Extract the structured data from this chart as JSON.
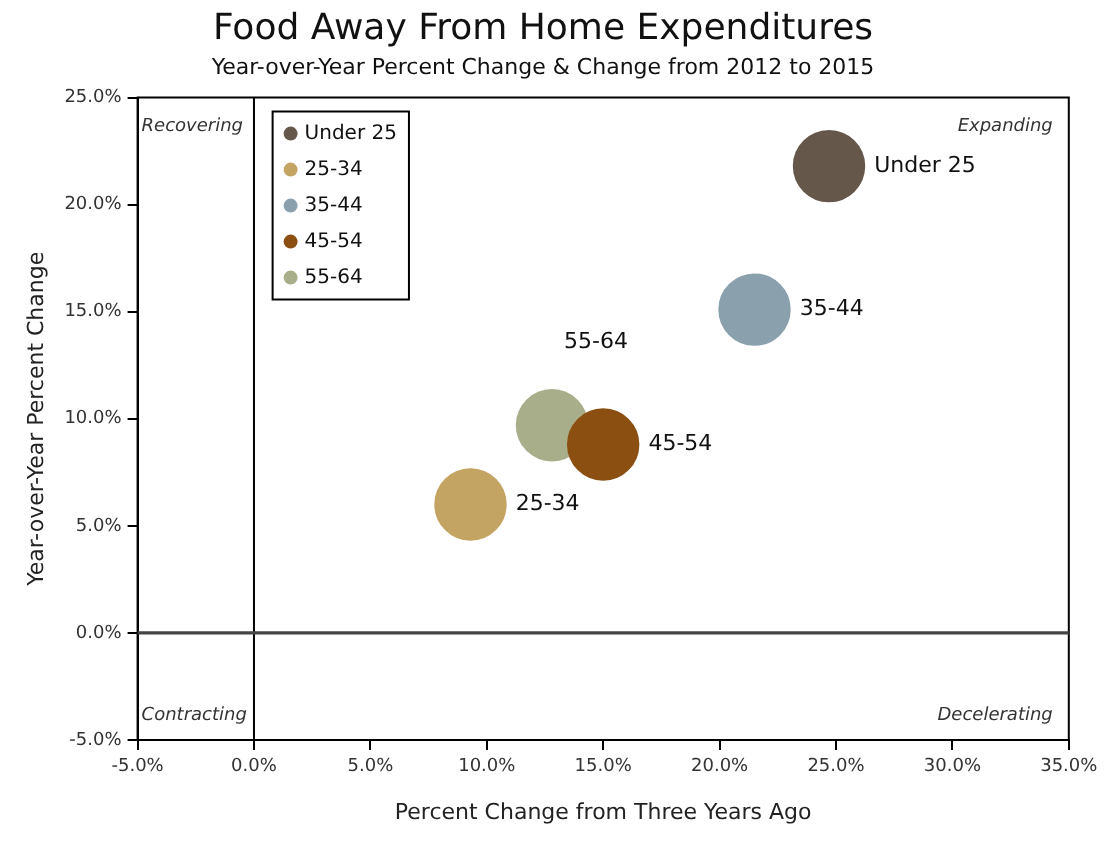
{
  "chart_data": {
    "type": "bubble",
    "title": "Food Away From Home Expenditures",
    "subtitle": "Year-over-Year Percent Change & Change from 2012 to 2015",
    "xlabel": "Percent Change from Three Years Ago",
    "ylabel": "Year-over-Year Percent Change",
    "xlim": [
      -5,
      35
    ],
    "xticks": [
      {
        "value": -5,
        "label": "-5.0%"
      },
      {
        "value": 0,
        "label": "0.0%"
      },
      {
        "value": 5,
        "label": "5.0%"
      },
      {
        "value": 10,
        "label": "10.0%"
      },
      {
        "value": 15,
        "label": "15.0%"
      },
      {
        "value": 20,
        "label": "20.0%"
      },
      {
        "value": 25,
        "label": "25.0%"
      },
      {
        "value": 30,
        "label": "30.0%"
      },
      {
        "value": 35,
        "label": "35.0%"
      }
    ],
    "ylim": [
      -5,
      25
    ],
    "yticks": [
      {
        "value": -5,
        "label": "-5.0%"
      },
      {
        "value": 0,
        "label": "0.0%"
      },
      {
        "value": 5,
        "label": "5.0%"
      },
      {
        "value": 10,
        "label": "10.0%"
      },
      {
        "value": 15,
        "label": "15.0%"
      },
      {
        "value": 20,
        "label": "20.0%"
      },
      {
        "value": 25,
        "label": "25.0%"
      }
    ],
    "series": [
      {
        "name": "Under 25",
        "color": "#65574a",
        "x": [
          24.7
        ],
        "values": [
          21.8
        ],
        "sizes": [
          1
        ]
      },
      {
        "name": "25-34",
        "color": "#c4a462",
        "x": [
          9.3
        ],
        "values": [
          6.0
        ],
        "sizes": [
          1
        ]
      },
      {
        "name": "35-44",
        "color": "#8aa1ad",
        "x": [
          21.5
        ],
        "values": [
          15.1
        ],
        "sizes": [
          1
        ]
      },
      {
        "name": "45-54",
        "color": "#8b4f12",
        "x": [
          15
        ],
        "values": [
          8.8
        ],
        "sizes": [
          1
        ]
      },
      {
        "name": "55-64",
        "color": "#a9ae8a",
        "x": [
          12.8
        ],
        "values": [
          9.7
        ],
        "sizes": [
          1
        ]
      }
    ],
    "ref_lines": [
      {
        "axis": "x",
        "value": 0,
        "color": "#000000"
      },
      {
        "axis": "y",
        "value": 0,
        "color": "#444444"
      }
    ],
    "annotations": [
      "Recovering",
      "Expanding",
      "Contracting",
      "Decelerating"
    ],
    "grid": false,
    "legend": "top left"
  }
}
